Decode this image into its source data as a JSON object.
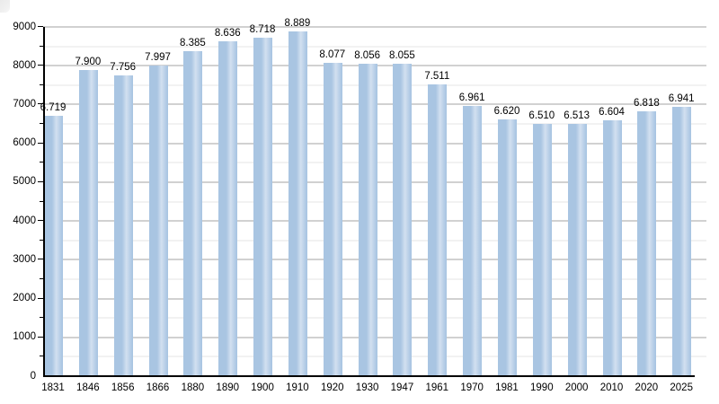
{
  "chart_data": {
    "type": "bar",
    "title": "",
    "xlabel": "",
    "ylabel": "",
    "categories": [
      "1831",
      "1846",
      "1856",
      "1866",
      "1880",
      "1890",
      "1900",
      "1910",
      "1920",
      "1930",
      "1947",
      "1961",
      "1970",
      "1981",
      "1990",
      "2000",
      "2010",
      "2020",
      "2025"
    ],
    "values": [
      6719,
      7900,
      7756,
      7997,
      8385,
      8636,
      8718,
      8889,
      8077,
      8056,
      8055,
      7511,
      6961,
      6620,
      6510,
      6513,
      6604,
      6818,
      6941
    ],
    "value_labels": [
      "6.719",
      "7.900",
      "7.756",
      "7.997",
      "8.385",
      "8.636",
      "8.718",
      "8.889",
      "8.077",
      "8.056",
      "8.055",
      "7.511",
      "6.961",
      "6.620",
      "6.510",
      "6.513",
      "6.604",
      "6.818",
      "6.941"
    ],
    "ylim": [
      0,
      9000
    ],
    "y_tick_labels": [
      "0",
      "1000",
      "2000",
      "3000",
      "4000",
      "5000",
      "6000",
      "7000",
      "8000",
      "9000"
    ],
    "y_major_step": 1000,
    "y_minor_step": 500,
    "grid": "on",
    "legend": "none",
    "colors": {
      "background": "#ffffff",
      "bar_main": "#a9c5e2",
      "bar_highlight": "#d2e0f0",
      "grid_major": "#a3a3a3",
      "grid_minor": "#e4e4e4",
      "axis": "#000000",
      "label_text": "#000000"
    }
  }
}
